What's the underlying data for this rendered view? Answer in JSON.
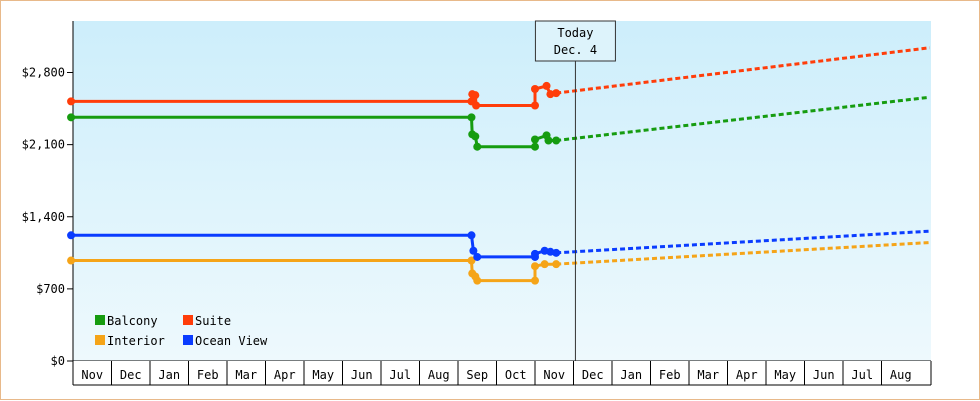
{
  "chart_data": {
    "type": "line",
    "y_ticks": [
      "$0",
      "$700",
      "$1,400",
      "$2,100",
      "$2,800"
    ],
    "ylim": [
      0,
      3300
    ],
    "x_ticks": [
      "Nov",
      "Dec",
      "Jan",
      "Feb",
      "Mar",
      "Apr",
      "May",
      "Jun",
      "Jul",
      "Aug",
      "Sep",
      "Oct",
      "Nov",
      "Dec",
      "Jan",
      "Feb",
      "Mar",
      "Apr",
      "May",
      "Jun",
      "Jul",
      "Aug"
    ],
    "xlim": [
      0,
      22
    ],
    "today_annotation": {
      "line1": "Today",
      "line2": "Dec. 4",
      "x": 13.1
    },
    "grid": false,
    "legend": {
      "placement": "bottom-left",
      "items": [
        {
          "label": "Balcony",
          "color": "#169c10"
        },
        {
          "label": "Suite",
          "color": "#ff3d0a"
        },
        {
          "label": "Interior",
          "color": "#f5a418"
        },
        {
          "label": "Ocean View",
          "color": "#0a3cff"
        }
      ]
    },
    "series": [
      {
        "name": "Balcony",
        "color": "#169c10",
        "history": [
          [
            0,
            2365
          ],
          [
            10.4,
            2365
          ],
          [
            10.42,
            2200
          ],
          [
            10.5,
            2180
          ],
          [
            10.55,
            2080
          ],
          [
            12.05,
            2080
          ],
          [
            12.05,
            2150
          ],
          [
            12.35,
            2190
          ],
          [
            12.4,
            2140
          ],
          [
            12.6,
            2140
          ]
        ],
        "forecast": [
          [
            12.6,
            2140
          ],
          [
            22.3,
            2560
          ]
        ]
      },
      {
        "name": "Suite",
        "color": "#ff3d0a",
        "history": [
          [
            0,
            2520
          ],
          [
            10.4,
            2520
          ],
          [
            10.42,
            2590
          ],
          [
            10.5,
            2580
          ],
          [
            10.52,
            2480
          ],
          [
            12.05,
            2480
          ],
          [
            12.05,
            2640
          ],
          [
            12.35,
            2670
          ],
          [
            12.45,
            2590
          ],
          [
            12.6,
            2600
          ]
        ],
        "forecast": [
          [
            12.6,
            2600
          ],
          [
            22.3,
            3040
          ]
        ]
      },
      {
        "name": "Interior",
        "color": "#f5a418",
        "history": [
          [
            0,
            975
          ],
          [
            10.4,
            975
          ],
          [
            10.42,
            850
          ],
          [
            10.5,
            820
          ],
          [
            10.55,
            780
          ],
          [
            12.05,
            780
          ],
          [
            12.05,
            920
          ],
          [
            12.3,
            940
          ],
          [
            12.6,
            940
          ]
        ],
        "forecast": [
          [
            12.6,
            940
          ],
          [
            22.3,
            1150
          ]
        ]
      },
      {
        "name": "Ocean View",
        "color": "#0a3cff",
        "history": [
          [
            0,
            1220
          ],
          [
            10.4,
            1220
          ],
          [
            10.45,
            1070
          ],
          [
            10.55,
            1010
          ],
          [
            12.05,
            1010
          ],
          [
            12.05,
            1040
          ],
          [
            12.3,
            1070
          ],
          [
            12.45,
            1060
          ],
          [
            12.6,
            1050
          ]
        ],
        "forecast": [
          [
            12.6,
            1050
          ],
          [
            22.3,
            1260
          ]
        ]
      }
    ]
  }
}
